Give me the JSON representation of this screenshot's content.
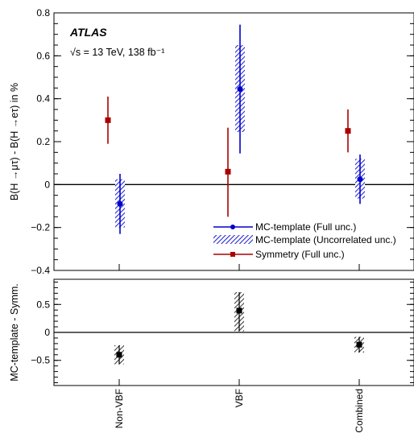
{
  "chart_data": [
    {
      "type": "scatter",
      "panel": "top",
      "categories": [
        "Non-VBF",
        "VBF",
        "Combined"
      ],
      "ylabel": "B(H →μτ) - B(H →eτ) in %",
      "ylim": [
        -0.4,
        0.8
      ],
      "yticks": [
        -0.4,
        -0.2,
        0,
        0.2,
        0.4,
        0.6,
        0.8
      ],
      "ytick_labels": [
        "−0.4",
        "−0.2",
        "0",
        "0.2",
        "0.4",
        "0.6",
        "0.8"
      ],
      "annotation": {
        "experiment": "ATLAS",
        "energy_lumi": "√s = 13 TeV, 138 fb⁻¹"
      },
      "legend": [
        {
          "label": "MC-template (Full unc.)",
          "color": "#0000cc",
          "marker": "circle"
        },
        {
          "label": "MC-template (Uncorrelated unc.)",
          "color": "#2a2ad0",
          "marker": "hatched-box"
        },
        {
          "label": "Symmetry (Full unc.)",
          "color": "#aa0000",
          "marker": "square"
        }
      ],
      "series": [
        {
          "name": "MC-template (Full unc.)",
          "values": [
            -0.09,
            0.445,
            0.025
          ],
          "err_low": [
            -0.23,
            0.145,
            -0.09
          ],
          "err_high": [
            0.05,
            0.745,
            0.14
          ],
          "stat_low": [
            -0.2,
            0.245,
            -0.065
          ],
          "stat_high": [
            0.025,
            0.65,
            0.12
          ]
        },
        {
          "name": "Symmetry (Full unc.)",
          "values": [
            0.3,
            0.06,
            0.25
          ],
          "err_low": [
            0.19,
            -0.15,
            0.15
          ],
          "err_high": [
            0.41,
            0.265,
            0.35
          ]
        }
      ]
    },
    {
      "type": "scatter",
      "panel": "bottom",
      "categories": [
        "Non-VBF",
        "VBF",
        "Combined"
      ],
      "ylabel": "MC-template - Symm.",
      "ylim": [
        -0.95,
        0.95
      ],
      "yticks": [
        -0.5,
        0,
        0.5
      ],
      "ytick_labels": [
        "−0.5",
        "0",
        "0.5"
      ],
      "values": [
        -0.4,
        0.39,
        -0.22
      ],
      "err_low": [
        -0.57,
        0.02,
        -0.36
      ],
      "err_high": [
        -0.23,
        0.72,
        -0.08
      ]
    }
  ]
}
